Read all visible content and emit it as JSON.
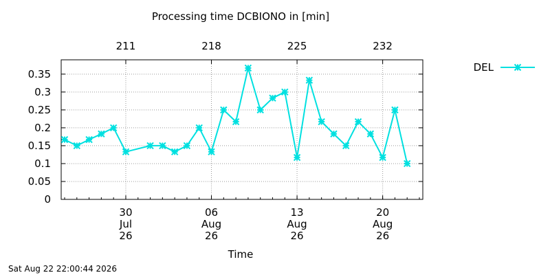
{
  "chart_data": {
    "type": "line",
    "title": "Processing time DCBIONO in [min]",
    "xlabel": "Time",
    "ylabel": "",
    "timestamp": "Sat Aug 22 22:00:44 2026",
    "ylim": [
      0,
      0.39
    ],
    "yticks": [
      "0",
      "0.05",
      "0.1",
      "0.15",
      "0.2",
      "0.25",
      "0.3",
      "0.35"
    ],
    "grid": true,
    "legend_position": "top-right-outside",
    "x_domain_days": [
      "2026-07-25",
      "2026-08-23"
    ],
    "bottom_ticks": [
      {
        "date": "2026-07-30",
        "lines": [
          "30",
          "Jul",
          "26"
        ]
      },
      {
        "date": "2026-08-06",
        "lines": [
          "06",
          "Aug",
          "26"
        ]
      },
      {
        "date": "2026-08-13",
        "lines": [
          "13",
          "Aug",
          "26"
        ]
      },
      {
        "date": "2026-08-20",
        "lines": [
          "20",
          "Aug",
          "26"
        ]
      }
    ],
    "top_ticks": [
      {
        "date": "2026-07-30",
        "label": "211"
      },
      {
        "date": "2026-08-06",
        "label": "218"
      },
      {
        "date": "2026-08-13",
        "label": "225"
      },
      {
        "date": "2026-08-20",
        "label": "232"
      }
    ],
    "series": [
      {
        "name": "DEL",
        "color": "#00e0e0",
        "marker": "asterisk",
        "points": [
          {
            "x": "2026-07-25",
            "y": 0.167
          },
          {
            "x": "2026-07-26",
            "y": 0.15
          },
          {
            "x": "2026-07-27",
            "y": 0.167
          },
          {
            "x": "2026-07-28",
            "y": 0.183
          },
          {
            "x": "2026-07-29",
            "y": 0.2
          },
          {
            "x": "2026-07-30",
            "y": 0.133
          },
          {
            "x": "2026-08-01",
            "y": 0.15
          },
          {
            "x": "2026-08-02",
            "y": 0.15
          },
          {
            "x": "2026-08-03",
            "y": 0.133
          },
          {
            "x": "2026-08-04",
            "y": 0.15
          },
          {
            "x": "2026-08-05",
            "y": 0.2
          },
          {
            "x": "2026-08-06",
            "y": 0.133
          },
          {
            "x": "2026-08-07",
            "y": 0.25
          },
          {
            "x": "2026-08-08",
            "y": 0.217
          },
          {
            "x": "2026-08-09",
            "y": 0.367
          },
          {
            "x": "2026-08-10",
            "y": 0.25
          },
          {
            "x": "2026-08-11",
            "y": 0.283
          },
          {
            "x": "2026-08-12",
            "y": 0.3
          },
          {
            "x": "2026-08-13",
            "y": 0.117
          },
          {
            "x": "2026-08-14",
            "y": 0.333
          },
          {
            "x": "2026-08-15",
            "y": 0.217
          },
          {
            "x": "2026-08-16",
            "y": 0.183
          },
          {
            "x": "2026-08-17",
            "y": 0.15
          },
          {
            "x": "2026-08-18",
            "y": 0.217
          },
          {
            "x": "2026-08-19",
            "y": 0.183
          },
          {
            "x": "2026-08-20",
            "y": 0.117
          },
          {
            "x": "2026-08-21",
            "y": 0.25
          },
          {
            "x": "2026-08-22",
            "y": 0.1
          }
        ]
      }
    ]
  }
}
